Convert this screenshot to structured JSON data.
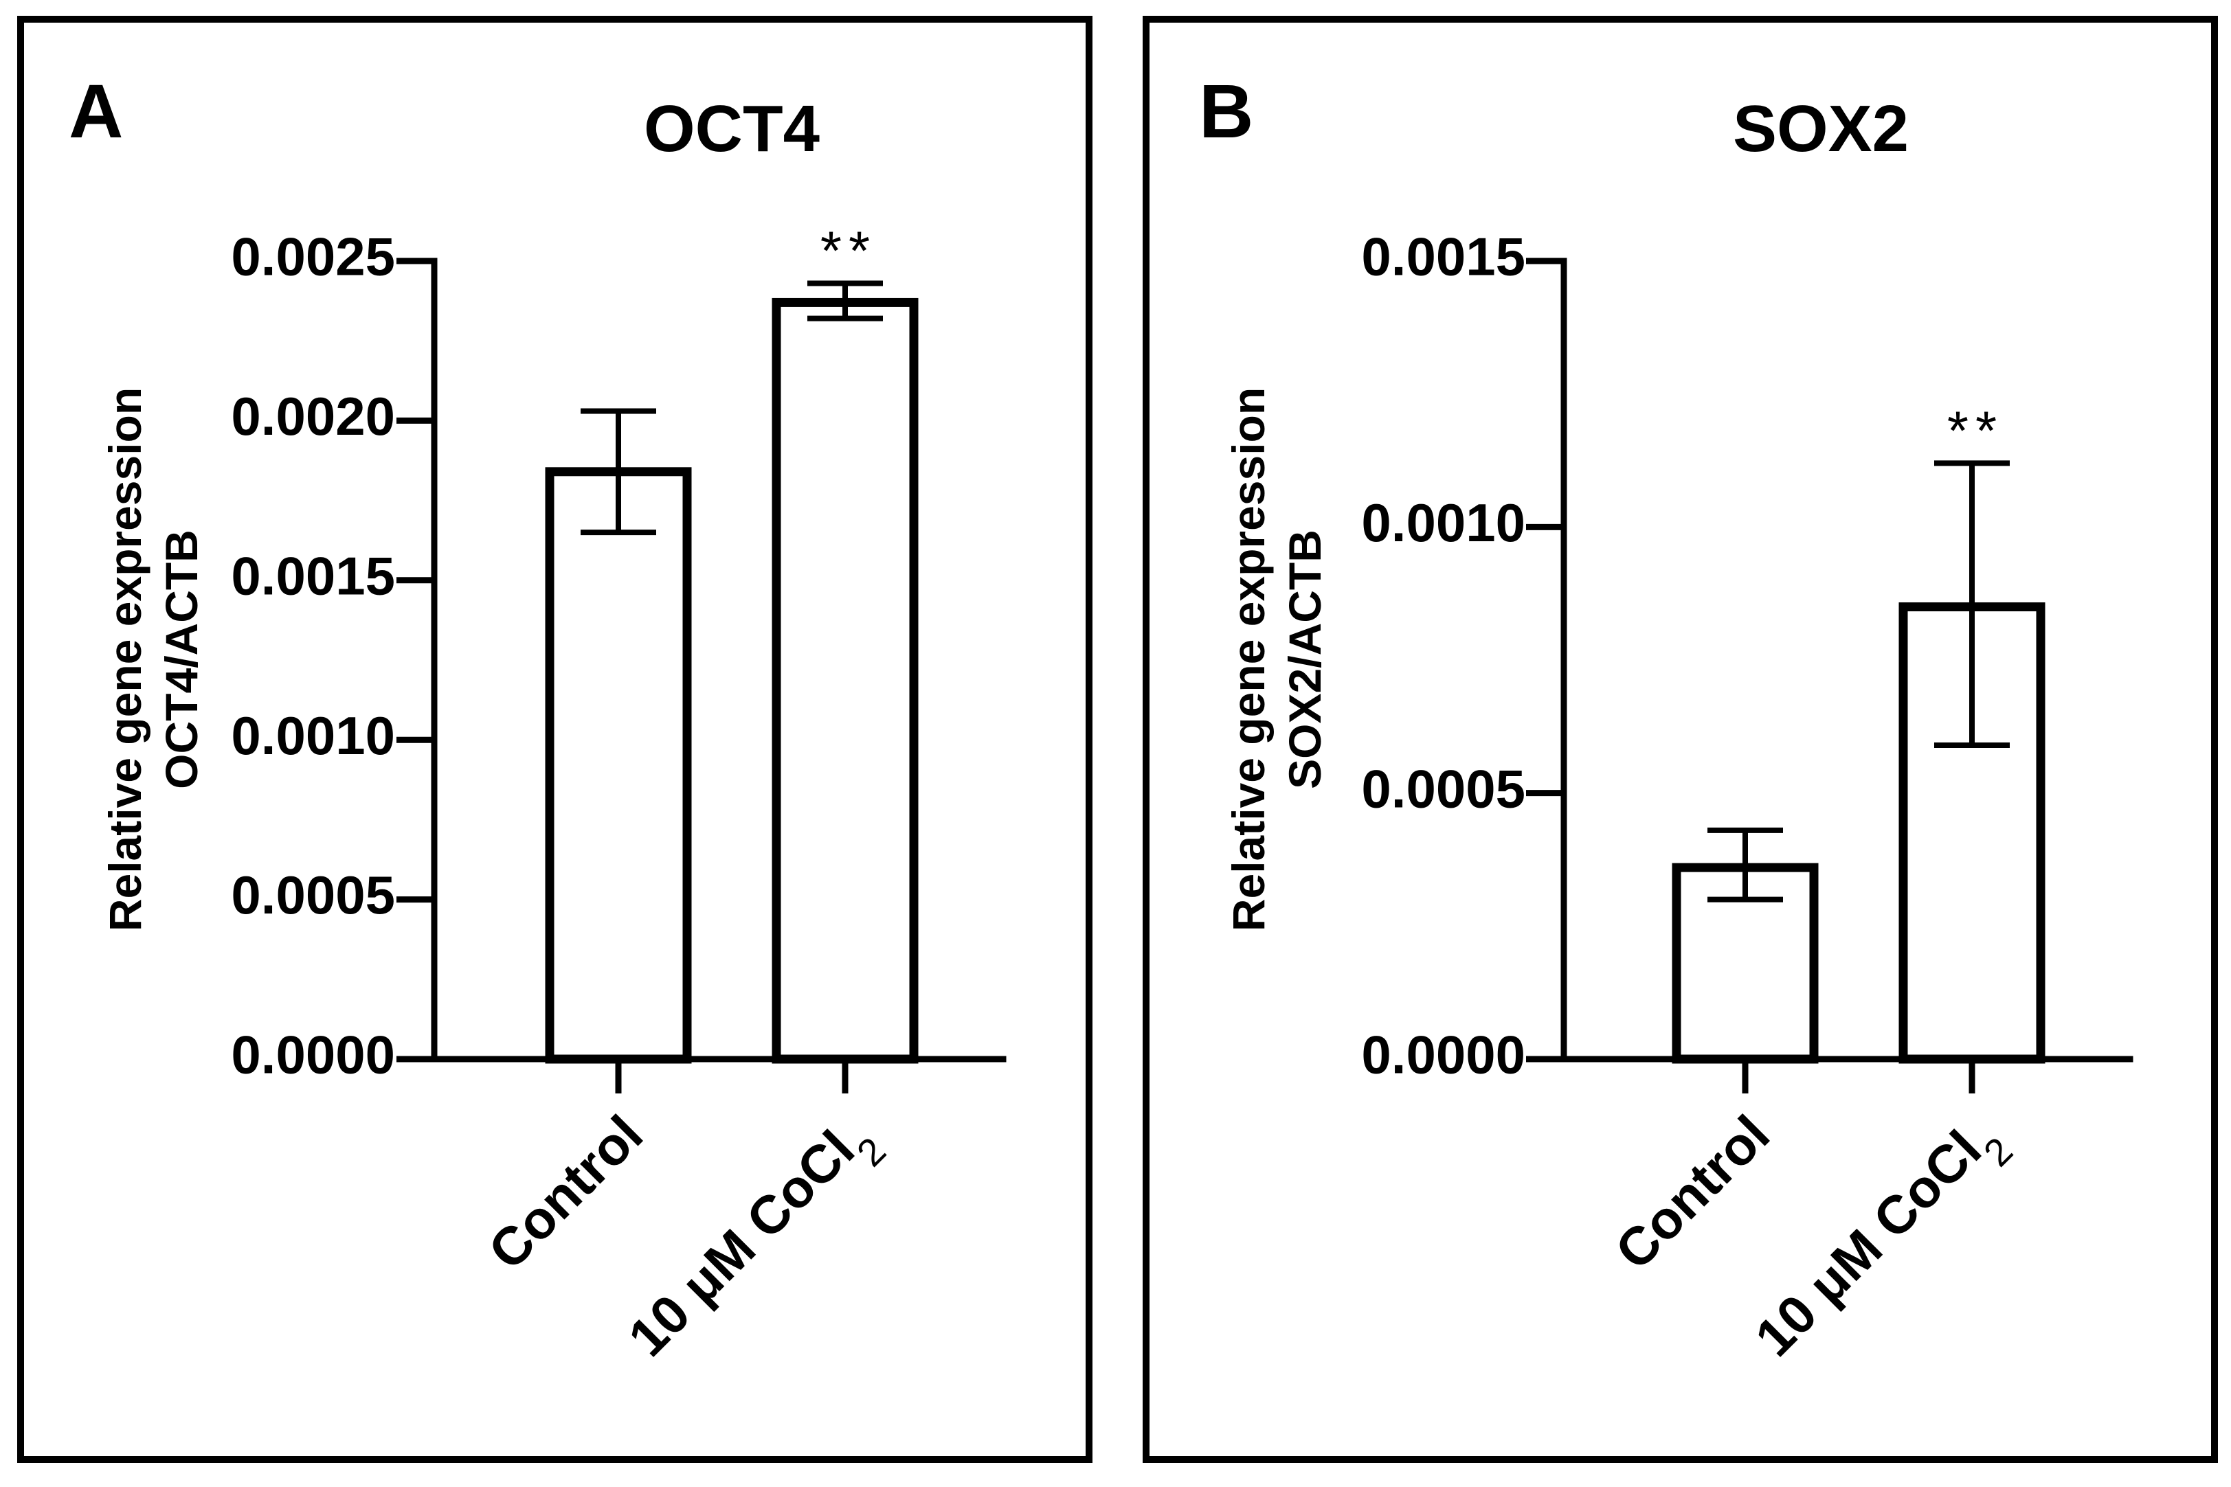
{
  "chart_data": [
    {
      "type": "bar",
      "panel_label": "A",
      "title": "OCT4",
      "ylabel_line1": "Relative gene expression",
      "ylabel_line2": "OCT4/ACTB",
      "xlabel": "",
      "categories": [
        "Control",
        "10 μM CoCl"
      ],
      "category_subscripts": [
        "",
        "2"
      ],
      "values": [
        0.00184,
        0.00237
      ],
      "error_low": [
        0.00165,
        0.00232
      ],
      "error_high": [
        0.00203,
        0.00243
      ],
      "significance": [
        "",
        "**"
      ],
      "ylim": [
        0,
        0.0025
      ],
      "yticks": [
        0,
        0.0005,
        0.001,
        0.0015,
        0.002,
        0.0025
      ],
      "ytick_labels": [
        "0.0000",
        "0.0005",
        "0.0010",
        "0.0015",
        "0.0020",
        "0.0025"
      ],
      "grid": false
    },
    {
      "type": "bar",
      "panel_label": "B",
      "title": "SOX2",
      "ylabel_line1": "Relative gene expression",
      "ylabel_line2": "SOX2/ACTB",
      "xlabel": "",
      "categories": [
        "Control",
        "10 μM CoCl"
      ],
      "category_subscripts": [
        "",
        "2"
      ],
      "values": [
        0.00036,
        0.00085
      ],
      "error_low": [
        0.0003,
        0.00059
      ],
      "error_high": [
        0.00043,
        0.00112
      ],
      "significance": [
        "",
        "**"
      ],
      "ylim": [
        0,
        0.0015
      ],
      "yticks": [
        0,
        0.0005,
        0.001,
        0.0015
      ],
      "ytick_labels": [
        "0.0000",
        "0.0005",
        "0.0010",
        "0.0015"
      ],
      "grid": false
    }
  ]
}
